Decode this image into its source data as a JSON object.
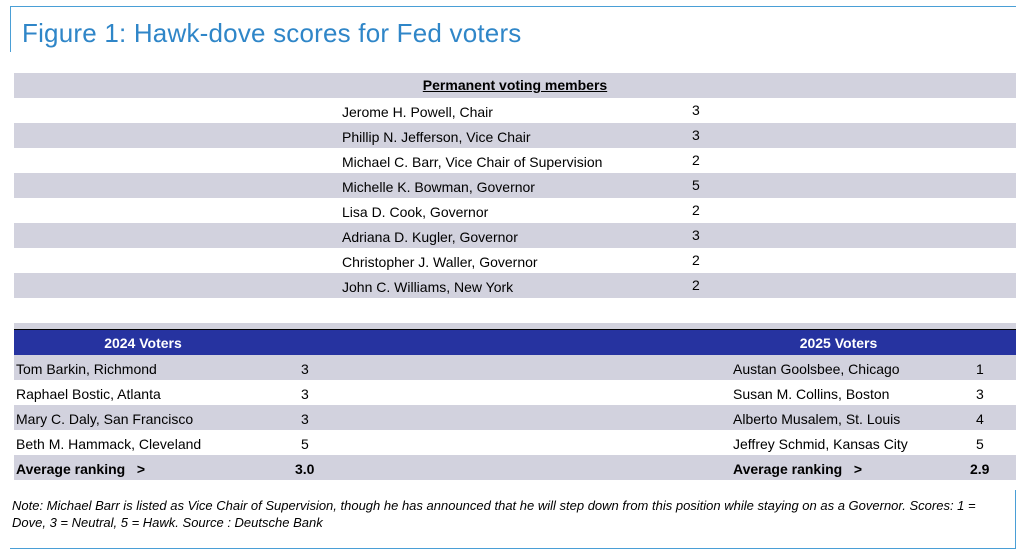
{
  "title": "Figure 1: Hawk-dove scores for Fed voters",
  "permanent": {
    "header": "Permanent voting members",
    "members": [
      {
        "name": "Jerome H. Powell, Chair",
        "score": "3"
      },
      {
        "name": "Phillip N. Jefferson, Vice Chair",
        "score": "3"
      },
      {
        "name": "Michael C. Barr, Vice Chair of Supervision",
        "score": "2"
      },
      {
        "name": "Michelle K. Bowman, Governor",
        "score": "5"
      },
      {
        "name": "Lisa D. Cook, Governor",
        "score": "2"
      },
      {
        "name": "Adriana D. Kugler, Governor",
        "score": "3"
      },
      {
        "name": "Christopher J. Waller, Governor",
        "score": "2"
      },
      {
        "name": "John C. Williams, New York",
        "score": "2"
      }
    ]
  },
  "voters_2024": {
    "header": "2024 Voters",
    "members": [
      {
        "name": "Tom Barkin, Richmond",
        "score": "3"
      },
      {
        "name": "Raphael Bostic, Atlanta",
        "score": "3"
      },
      {
        "name": "Mary C. Daly, San Francisco",
        "score": "3"
      },
      {
        "name": "Beth M. Hammack, Cleveland",
        "score": "5"
      }
    ],
    "average_label": "Average ranking   >",
    "average_value": "3.0"
  },
  "voters_2025": {
    "header": "2025 Voters",
    "members": [
      {
        "name": "Austan Goolsbee, Chicago",
        "score": "1"
      },
      {
        "name": "Susan M. Collins, Boston",
        "score": "3"
      },
      {
        "name": "Alberto Musalem, St. Louis",
        "score": "4"
      },
      {
        "name": "Jeffrey Schmid, Kansas City",
        "score": "5"
      }
    ],
    "average_label": "Average ranking   >",
    "average_value": "2.9"
  },
  "note": "Note: Michael Barr is listed as Vice Chair of Supervision, though he has announced that he will step down from this position while staying on as a Governor. Scores: 1 = Dove, 3 = Neutral, 5 = Hawk. Source : Deutsche Bank",
  "colors": {
    "title": "#2f86c8",
    "frame": "#4a9fd6",
    "row_shade": "#d2d2de",
    "voters_bar": "#2633a0"
  }
}
